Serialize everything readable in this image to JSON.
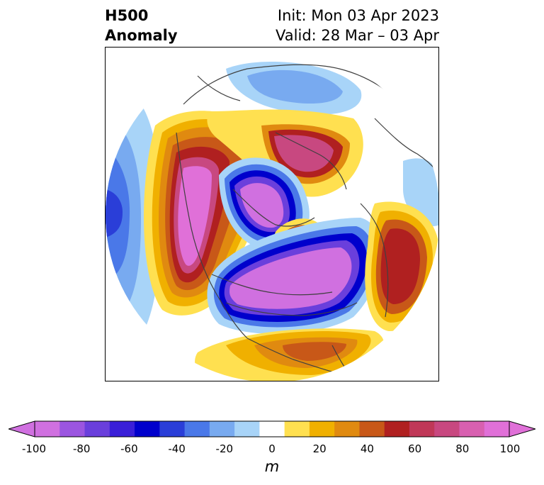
{
  "title": {
    "left_line1": "H500",
    "left_line2": "Anomaly",
    "right_line1": "Init: Mon 03 Apr 2023",
    "right_line2": "Valid: 28 Mar – 03 Apr"
  },
  "colorbar": {
    "unit": "m",
    "ticks": [
      "-100",
      "-80",
      "-60",
      "-40",
      "-20",
      "0",
      "20",
      "40",
      "60",
      "80",
      "100"
    ],
    "colors": [
      "#d070e0",
      "#9b55e0",
      "#6a3fdc",
      "#3a1fd8",
      "#0000cc",
      "#2a3ed8",
      "#4a78e8",
      "#78aaf0",
      "#a8d4f8",
      "#ffffff",
      "#ffe050",
      "#f0b000",
      "#e08a10",
      "#c85818",
      "#b02020",
      "#c03858",
      "#c84880",
      "#d860b0",
      "#e070d8"
    ],
    "extend_min_color": "#d070e0",
    "extend_max_color": "#e070d8"
  }
}
